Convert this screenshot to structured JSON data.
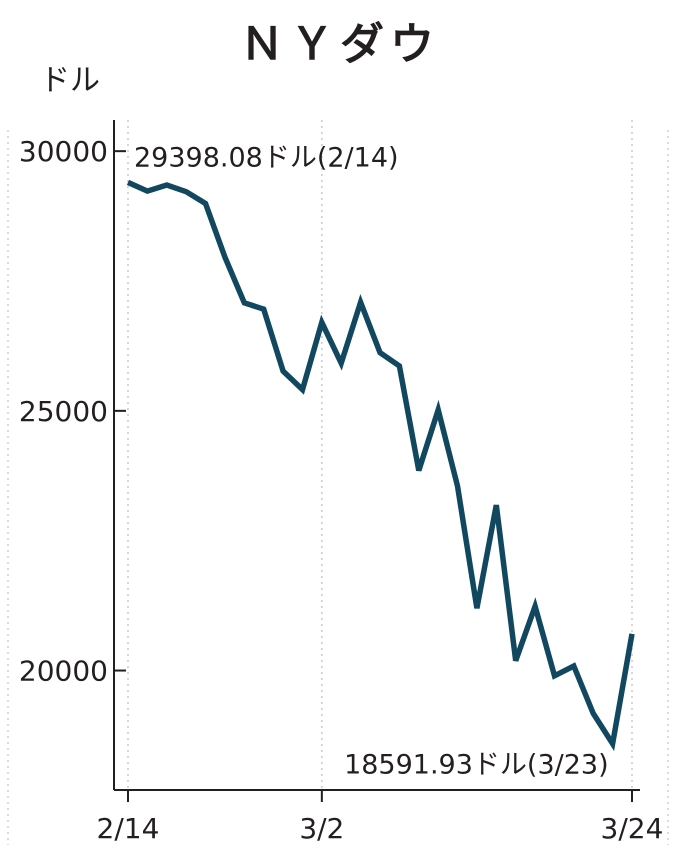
{
  "chart_data": {
    "type": "line",
    "title": "ＮＹダウ",
    "ylabel": "ドル",
    "xlabel": "",
    "ylim": [
      17700,
      30600
    ],
    "y_ticks": [
      {
        "value": 30000,
        "label": "30000"
      },
      {
        "value": 25000,
        "label": "25000"
      },
      {
        "value": 20000,
        "label": "20000"
      }
    ],
    "x_ticks": [
      {
        "index": 0,
        "label": "2/14"
      },
      {
        "index": 10,
        "label": "3/2"
      },
      {
        "index": 26,
        "label": "3/24"
      }
    ],
    "series": [
      {
        "color": "#11475f",
        "x": [
          "2/14",
          "2/18",
          "2/19",
          "2/20",
          "2/21",
          "2/24",
          "2/25",
          "2/26",
          "2/27",
          "2/28",
          "3/2",
          "3/3",
          "3/4",
          "3/5",
          "3/6",
          "3/9",
          "3/10",
          "3/11",
          "3/12",
          "3/13",
          "3/16",
          "3/17",
          "3/18",
          "3/19",
          "3/20",
          "3/23",
          "3/24"
        ],
        "values": [
          29398.08,
          29232,
          29348,
          29219,
          28992,
          27961,
          27081,
          26957,
          25766,
          25409,
          26703,
          25917,
          27090,
          26121,
          25864,
          23851,
          25018,
          23553,
          21200,
          23185,
          20189,
          21237,
          19899,
          20087,
          19174,
          18591.93,
          20705
        ]
      }
    ],
    "annotations": [
      {
        "label": "29398.08ドル(2/14)",
        "index": 0
      },
      {
        "label": "18591.93ドル(3/23)",
        "index": 25
      }
    ]
  }
}
